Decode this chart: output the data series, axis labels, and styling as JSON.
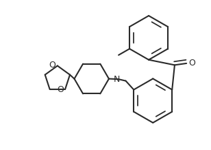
{
  "bg_color": "#ffffff",
  "line_color": "#2a2a2a",
  "line_width": 1.5,
  "figsize": [
    3.08,
    2.2
  ],
  "dpi": 100,
  "xlim": [
    0,
    10
  ],
  "ylim": [
    0,
    7.15
  ]
}
